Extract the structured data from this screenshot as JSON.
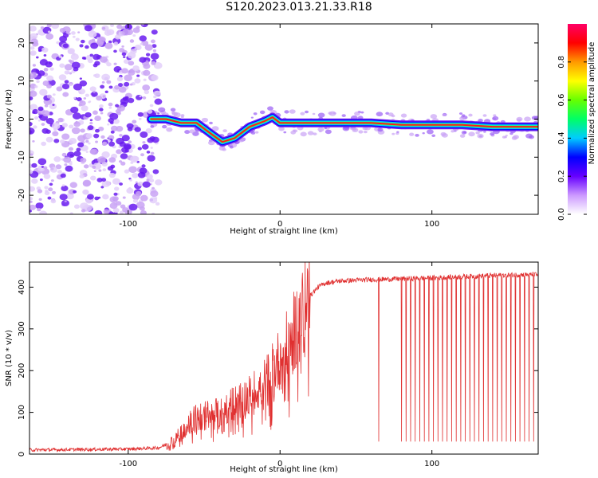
{
  "title": "S120.2023.013.21.33.R18",
  "chart_data": [
    {
      "type": "heatmap",
      "xlabel": "Height of straight line (km)",
      "ylabel": "Frequency (Hz)",
      "xlim": [
        -165,
        170
      ],
      "ylim": [
        -25,
        25
      ],
      "x_ticks": [
        -100,
        0,
        100
      ],
      "y_ticks": [
        -20,
        -10,
        0,
        10,
        20
      ],
      "colorbar": {
        "label": "Normalized spectral amplitude",
        "range": [
          0,
          1
        ],
        "ticks": [
          0.0,
          0.2,
          0.4,
          0.6,
          0.8
        ],
        "colors": [
          "#ffffff",
          "#cc99ff",
          "#6600ff",
          "#0000ff",
          "#00ccff",
          "#00ff66",
          "#66ff00",
          "#ffff00",
          "#ff9900",
          "#ff0000",
          "#ff0066"
        ]
      },
      "ridge": {
        "x": [
          -85,
          -75,
          -65,
          -55,
          -45,
          -38,
          -30,
          -20,
          -10,
          -5,
          0,
          5,
          10,
          20,
          40,
          60,
          80,
          100,
          120,
          140,
          160,
          170
        ],
        "y": [
          0,
          0,
          -1,
          -1,
          -4,
          -6,
          -5,
          -2,
          -0.5,
          0.5,
          -1,
          -1,
          -1,
          -1,
          -1,
          -1,
          -1.5,
          -1.5,
          -1.5,
          -2,
          -2,
          -2
        ]
      },
      "noise_region_x": [
        -165,
        -80
      ]
    },
    {
      "type": "line",
      "xlabel": "Height of straight line (km)",
      "ylabel": "SNR (10 * v/v)",
      "xlim": [
        -165,
        170
      ],
      "ylim": [
        0,
        460
      ],
      "x_ticks": [
        -100,
        0,
        100
      ],
      "y_ticks": [
        0,
        100,
        200,
        300,
        400
      ],
      "color": "#e03030",
      "trend": {
        "x": [
          -165,
          -100,
          -80,
          -70,
          -60,
          -50,
          -40,
          -30,
          -20,
          -10,
          0,
          5,
          10,
          15,
          20,
          25,
          30,
          40,
          60,
          80,
          100,
          120,
          140,
          160,
          170
        ],
        "y": [
          10,
          12,
          15,
          30,
          80,
          90,
          100,
          120,
          140,
          170,
          230,
          260,
          300,
          340,
          380,
          400,
          410,
          415,
          418,
          420,
          422,
          425,
          428,
          430,
          430
        ]
      },
      "dropouts_x": [
        65,
        80,
        83,
        86,
        89,
        92,
        95,
        98,
        101,
        104,
        107,
        110,
        113,
        116,
        119,
        122,
        125,
        128,
        131,
        134,
        137,
        140,
        143,
        146,
        149,
        152,
        155,
        158,
        161,
        164,
        167
      ],
      "dropout_floor": 30
    }
  ]
}
